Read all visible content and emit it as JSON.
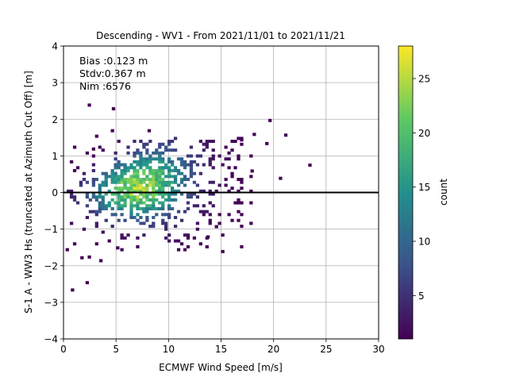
{
  "chart_data": {
    "type": "heatmap",
    "title": "Descending - WV1 - From 2021/11/01 to 2021/11/21",
    "xlabel": "ECMWF Wind Speed [m/s]",
    "ylabel": "S-1 A - WW3 Hs (truncated at Azimuth Cut Off) [m]",
    "xlim": [
      0,
      30
    ],
    "ylim": [
      -4,
      4
    ],
    "xticks": [
      "0",
      "5",
      "10",
      "15",
      "20",
      "25",
      "30"
    ],
    "yticks": [
      "−4",
      "−3",
      "−2",
      "−1",
      "0",
      "1",
      "2",
      "3",
      "4"
    ],
    "grid": true,
    "reference_line_y": 0,
    "annotations": [
      "Bias :0.123 m",
      "Stdv:0.367 m",
      "Nim :6576"
    ],
    "colorbar": {
      "label": "count",
      "range": [
        1,
        28
      ],
      "ticks": [
        "5",
        "10",
        "15",
        "20",
        "25"
      ],
      "colormap": [
        "#440154",
        "#3b528b",
        "#21908d",
        "#5dc963",
        "#fde725"
      ]
    },
    "bin_width": [
      0.3,
      0.08
    ],
    "density_core": {
      "x_center": 7,
      "y_center": 0.12,
      "x_spread": 3.2,
      "y_spread": 0.37,
      "max_count": 28
    },
    "outliers": [
      [
        2.3,
        2.35
      ],
      [
        4.6,
        2.25
      ],
      [
        8.0,
        1.65
      ],
      [
        4.5,
        1.65
      ],
      [
        19.5,
        1.93
      ],
      [
        21.0,
        1.53
      ],
      [
        23.3,
        0.71
      ],
      [
        20.5,
        0.35
      ],
      [
        2.7,
        1.15
      ],
      [
        3.0,
        1.5
      ],
      [
        18.0,
        1.55
      ],
      [
        16.8,
        1.4
      ],
      [
        0.7,
        -2.7
      ],
      [
        2.1,
        -2.5
      ],
      [
        1.6,
        -1.82
      ],
      [
        2.3,
        -1.8
      ],
      [
        3.4,
        -1.9
      ],
      [
        0.2,
        -1.6
      ],
      [
        15.0,
        -1.65
      ],
      [
        5.0,
        -1.55
      ],
      [
        13.6,
        -1.25
      ],
      [
        14.4,
        -0.97
      ],
      [
        17.8,
        0.55
      ],
      [
        19.2,
        1.3
      ]
    ]
  }
}
